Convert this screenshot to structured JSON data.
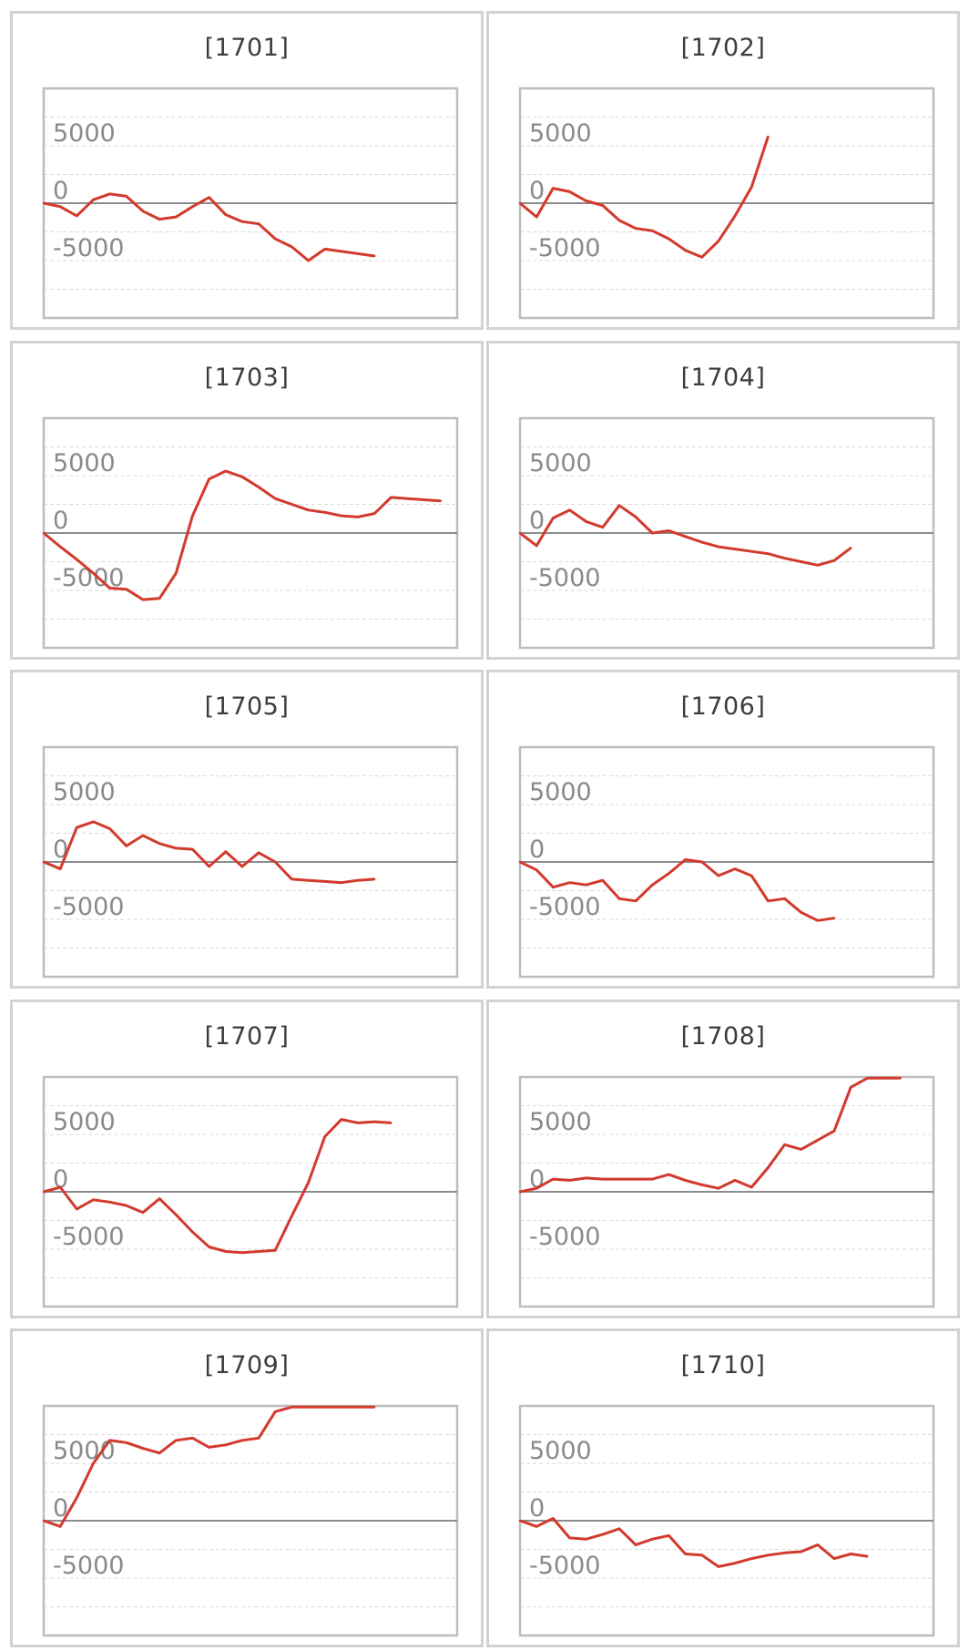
{
  "corner_text": "",
  "style": {
    "line_color": "#d23a2c",
    "zero_line_color": "#8c8c8c",
    "grid_color": "#d9d9d9",
    "frame_color": "#bdbdbd"
  },
  "chart_data": [
    {
      "type": "line",
      "title": "[1701]",
      "ylim": [
        -10000,
        10000
      ],
      "yticks": [
        5000,
        0,
        -5000
      ],
      "grid": true,
      "x": [
        0,
        1,
        2,
        3,
        4,
        5,
        6,
        7,
        8,
        9,
        10,
        11,
        12,
        13,
        14,
        15,
        16,
        17,
        18,
        19,
        20
      ],
      "values": [
        0,
        -300,
        -1100,
        300,
        800,
        600,
        -700,
        -1400,
        -1200,
        -300,
        500,
        -1000,
        -1600,
        -1800,
        -3100,
        -3800,
        -5000,
        -4000,
        -4200,
        -4400,
        -4600
      ]
    },
    {
      "type": "line",
      "title": "[1702]",
      "ylim": [
        -10000,
        10000
      ],
      "yticks": [
        5000,
        0,
        -5000
      ],
      "grid": true,
      "x": [
        0,
        1,
        2,
        3,
        4,
        5,
        6,
        7,
        8,
        9,
        10,
        11,
        12,
        13,
        14,
        15
      ],
      "values": [
        0,
        -1200,
        1300,
        1000,
        200,
        -200,
        -1500,
        -2200,
        -2400,
        -3100,
        -4100,
        -4700,
        -3300,
        -1100,
        1400,
        5800
      ]
    },
    {
      "type": "line",
      "title": "[1703]",
      "ylim": [
        -10000,
        10000
      ],
      "yticks": [
        5000,
        0,
        -5000
      ],
      "grid": true,
      "x": [
        0,
        1,
        2,
        3,
        4,
        5,
        6,
        7,
        8,
        9,
        10,
        11,
        12,
        13,
        14,
        15,
        16,
        17,
        18,
        19,
        20,
        21,
        22,
        23,
        24
      ],
      "values": [
        0,
        -1200,
        -2300,
        -3500,
        -4800,
        -4900,
        -5800,
        -5700,
        -3500,
        1500,
        4700,
        5400,
        4900,
        4000,
        3000,
        2500,
        2000,
        1800,
        1500,
        1400,
        1700,
        3100,
        3000,
        2900,
        2800
      ]
    },
    {
      "type": "line",
      "title": "[1704]",
      "ylim": [
        -10000,
        10000
      ],
      "yticks": [
        5000,
        0,
        -5000
      ],
      "grid": true,
      "x": [
        0,
        1,
        2,
        3,
        4,
        5,
        6,
        7,
        8,
        9,
        10,
        11,
        12,
        13,
        14,
        15,
        16,
        17,
        18,
        19,
        20
      ],
      "values": [
        0,
        -1100,
        1300,
        2000,
        1000,
        500,
        2400,
        1400,
        0,
        200,
        -300,
        -800,
        -1200,
        -1400,
        -1600,
        -1800,
        -2200,
        -2500,
        -2800,
        -2400,
        -1300
      ]
    },
    {
      "type": "line",
      "title": "[1705]",
      "ylim": [
        -10000,
        10000
      ],
      "yticks": [
        5000,
        0,
        -5000
      ],
      "grid": true,
      "x": [
        0,
        1,
        2,
        3,
        4,
        5,
        6,
        7,
        8,
        9,
        10,
        11,
        12,
        13,
        14,
        15,
        16,
        17,
        18,
        19,
        20
      ],
      "values": [
        0,
        -600,
        3000,
        3500,
        2900,
        1400,
        2300,
        1600,
        1200,
        1100,
        -400,
        900,
        -400,
        800,
        0,
        -1500,
        -1600,
        -1700,
        -1800,
        -1600,
        -1500
      ]
    },
    {
      "type": "line",
      "title": "[1706]",
      "ylim": [
        -10000,
        10000
      ],
      "yticks": [
        5000,
        0,
        -5000
      ],
      "grid": true,
      "x": [
        0,
        1,
        2,
        3,
        4,
        5,
        6,
        7,
        8,
        9,
        10,
        11,
        12,
        13,
        14,
        15,
        16,
        17,
        18,
        19
      ],
      "values": [
        0,
        -700,
        -2200,
        -1800,
        -2000,
        -1600,
        -3200,
        -3400,
        -2000,
        -1000,
        200,
        0,
        -1200,
        -600,
        -1200,
        -3400,
        -3200,
        -4400,
        -5100,
        -4900
      ]
    },
    {
      "type": "line",
      "title": "[1707]",
      "ylim": [
        -10000,
        10000
      ],
      "yticks": [
        5000,
        0,
        -5000
      ],
      "grid": true,
      "x": [
        0,
        1,
        2,
        3,
        4,
        5,
        6,
        7,
        8,
        9,
        10,
        11,
        12,
        13,
        14,
        15,
        16,
        17,
        18,
        19,
        20,
        21
      ],
      "values": [
        0,
        400,
        -1500,
        -700,
        -900,
        -1200,
        -1800,
        -600,
        -2000,
        -3500,
        -4800,
        -5200,
        -5300,
        -5200,
        -5100,
        -2100,
        800,
        4800,
        6300,
        6000,
        6100,
        6000
      ]
    },
    {
      "type": "line",
      "title": "[1708]",
      "ylim": [
        -10000,
        10000
      ],
      "yticks": [
        5000,
        0,
        -5000
      ],
      "grid": true,
      "x": [
        0,
        1,
        2,
        3,
        4,
        5,
        6,
        7,
        8,
        9,
        10,
        11,
        12,
        13,
        14,
        15,
        16,
        17,
        18,
        19,
        20,
        21,
        22,
        23
      ],
      "values": [
        0,
        300,
        1100,
        1000,
        1200,
        1100,
        1100,
        1100,
        1100,
        1500,
        1000,
        600,
        300,
        1000,
        400,
        2100,
        4100,
        3700,
        4500,
        5300,
        9100,
        9900,
        9900,
        9900
      ]
    },
    {
      "type": "line",
      "title": "[1709]",
      "ylim": [
        -10000,
        10000
      ],
      "yticks": [
        5000,
        0,
        -5000
      ],
      "grid": true,
      "x": [
        0,
        1,
        2,
        3,
        4,
        5,
        6,
        7,
        8,
        9,
        10,
        11,
        12,
        13,
        14,
        15,
        16,
        17,
        18,
        19,
        20
      ],
      "values": [
        0,
        -500,
        2000,
        5000,
        7000,
        6800,
        6300,
        5900,
        7000,
        7200,
        6400,
        6600,
        7000,
        7200,
        9500,
        9900,
        9900,
        9900,
        9900,
        9900,
        9900
      ]
    },
    {
      "type": "line",
      "title": "[1710]",
      "ylim": [
        -10000,
        10000
      ],
      "yticks": [
        5000,
        0,
        -5000
      ],
      "grid": true,
      "x": [
        0,
        1,
        2,
        3,
        4,
        5,
        6,
        7,
        8,
        9,
        10,
        11,
        12,
        13,
        14,
        15,
        16,
        17,
        18,
        19,
        20,
        21
      ],
      "values": [
        0,
        -500,
        200,
        -1500,
        -1600,
        -1200,
        -700,
        -2100,
        -1600,
        -1300,
        -2900,
        -3000,
        -4000,
        -3700,
        -3300,
        -3000,
        -2800,
        -2700,
        -2100,
        -3300,
        -2900,
        -3100
      ]
    }
  ]
}
